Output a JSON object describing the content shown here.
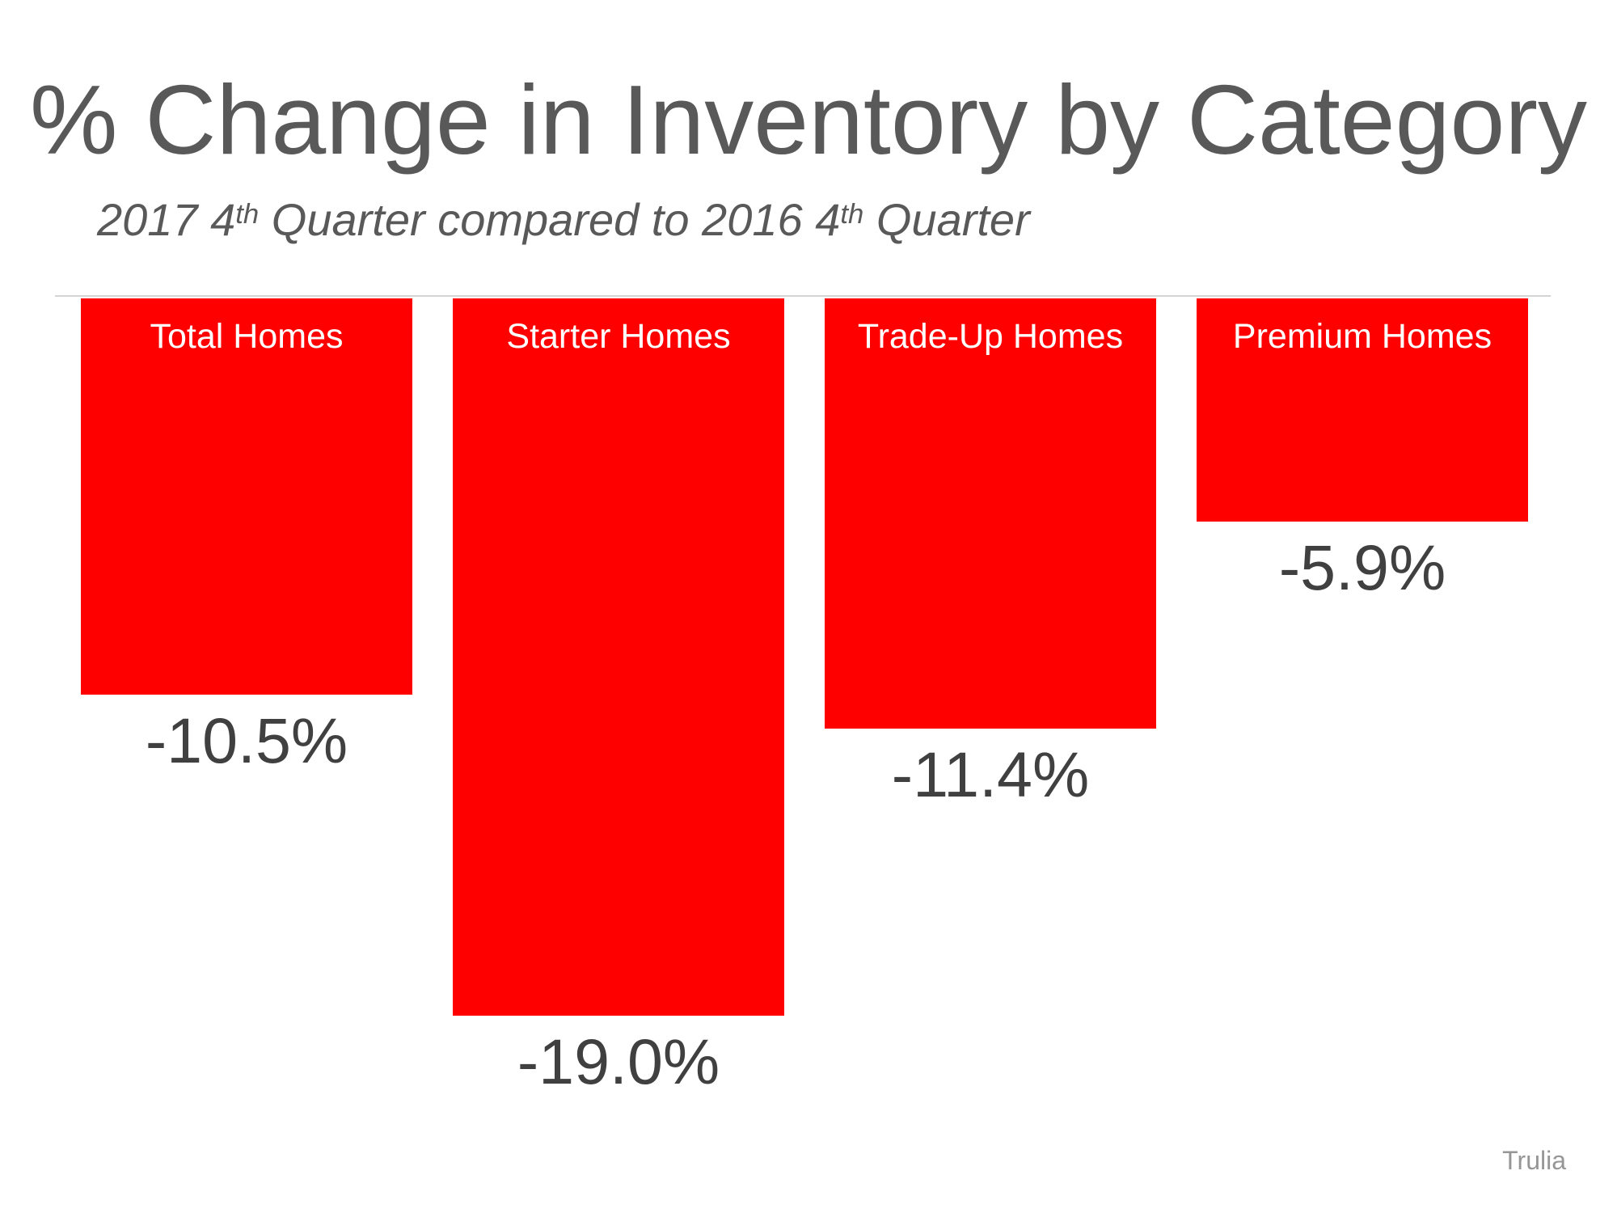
{
  "title": "% Change in Inventory by Category",
  "subtitle": {
    "part1": "2017 4",
    "sup1": "th",
    "part2": " Quarter compared to 2016 4",
    "sup2": "th",
    "part3": " Quarter"
  },
  "source": "Trulia",
  "colors": {
    "bar": "#FF0000",
    "title_text": "#595959",
    "value_text": "#404040",
    "bar_label_text": "#FFFFFF",
    "baseline": "#D4D4D4",
    "source_text": "#969696"
  },
  "chart_data": {
    "type": "bar",
    "title": "% Change in Inventory by Category",
    "subtitle": "2017 4th Quarter compared to 2016 4th Quarter",
    "categories": [
      "Total Homes",
      "Starter Homes",
      "Trade-Up Homes",
      "Premium Homes"
    ],
    "values": [
      -10.5,
      -19.0,
      -11.4,
      -5.9
    ],
    "value_labels": [
      "-10.5%",
      "-19.0%",
      "-11.4%",
      "-5.9%"
    ],
    "bar_color": "#FF0000",
    "orientation": "vertical",
    "baseline_value": 0,
    "bars_grow_downward": true,
    "grid": false,
    "legend": false,
    "axes_labeled": false,
    "source": "Trulia"
  }
}
